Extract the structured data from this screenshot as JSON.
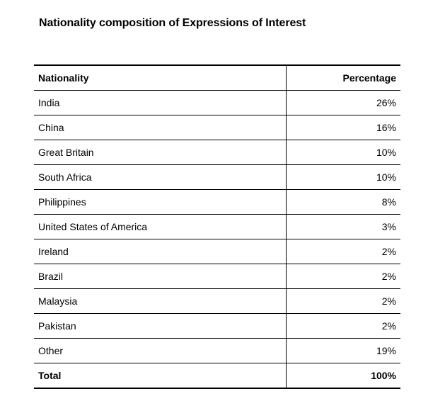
{
  "title": "Nationality composition of Expressions of Interest",
  "table": {
    "headers": {
      "nationality": "Nationality",
      "percentage": "Percentage"
    },
    "rows": [
      {
        "nationality": "India",
        "percentage": "26%"
      },
      {
        "nationality": "China",
        "percentage": "16%"
      },
      {
        "nationality": "Great Britain",
        "percentage": "10%"
      },
      {
        "nationality": "South Africa",
        "percentage": "10%"
      },
      {
        "nationality": "Philippines",
        "percentage": "8%"
      },
      {
        "nationality": "United States of America",
        "percentage": "3%"
      },
      {
        "nationality": "Ireland",
        "percentage": "2%"
      },
      {
        "nationality": "Brazil",
        "percentage": "2%"
      },
      {
        "nationality": "Malaysia",
        "percentage": "2%"
      },
      {
        "nationality": "Pakistan",
        "percentage": "2%"
      },
      {
        "nationality": "Other",
        "percentage": "19%"
      }
    ],
    "total": {
      "nationality": "Total",
      "percentage": "100%"
    }
  }
}
